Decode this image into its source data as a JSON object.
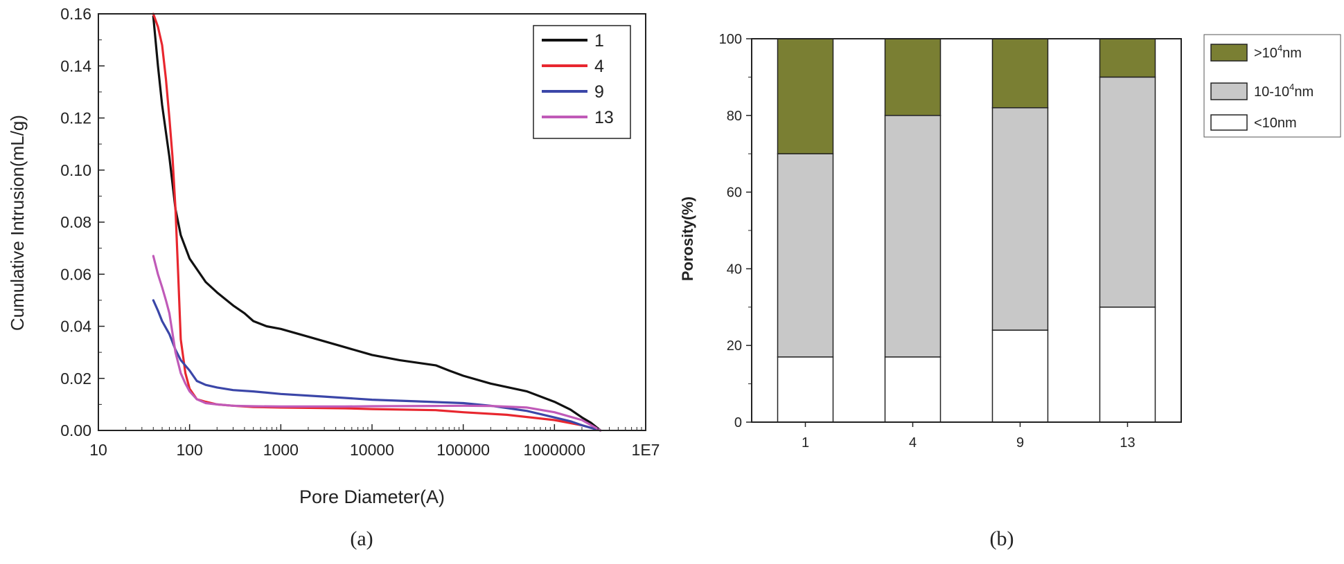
{
  "colors": {
    "line_1": "#111111",
    "line_4": "#e8272f",
    "line_9": "#3b46a8",
    "line_13": "#c05ab8",
    "seg_large": "#7a7f33",
    "seg_mid": "#c8c8c8",
    "seg_small": "#ffffff",
    "axis": "#222222"
  },
  "chart_data": [
    {
      "type": "line",
      "caption": "(a)",
      "xlabel": "Pore Diameter(A)",
      "ylabel": "Cumulative Intrusion(mL/g)",
      "xscale": "log",
      "xlim": [
        10,
        10000000
      ],
      "ylim": [
        0,
        0.16
      ],
      "x_tick_labels": [
        "10",
        "100",
        "1000",
        "10000",
        "100000",
        "1000000",
        "1E7"
      ],
      "y_tick_labels": [
        "0.00",
        "0.02",
        "0.04",
        "0.06",
        "0.08",
        "0.10",
        "0.12",
        "0.14",
        "0.16"
      ],
      "legend_position": "top-right",
      "series": [
        {
          "name": "1",
          "x": [
            40,
            45,
            50,
            60,
            70,
            80,
            100,
            150,
            200,
            300,
            400,
            500,
            700,
            1000,
            2000,
            5000,
            10000,
            20000,
            50000,
            70000,
            100000,
            200000,
            500000,
            1000000,
            1500000,
            2000000,
            2500000,
            3200000
          ],
          "y": [
            0.159,
            0.14,
            0.125,
            0.105,
            0.085,
            0.075,
            0.066,
            0.057,
            0.053,
            0.048,
            0.045,
            0.042,
            0.04,
            0.039,
            0.036,
            0.032,
            0.029,
            0.027,
            0.025,
            0.023,
            0.021,
            0.018,
            0.015,
            0.011,
            0.008,
            0.005,
            0.003,
            0.0
          ]
        },
        {
          "name": "4",
          "x": [
            40,
            45,
            50,
            55,
            60,
            65,
            70,
            75,
            80,
            90,
            100,
            120,
            150,
            200,
            300,
            500,
            1000,
            5000,
            10000,
            50000,
            100000,
            300000,
            1000000,
            2000000,
            3200000
          ],
          "y": [
            0.16,
            0.155,
            0.148,
            0.135,
            0.12,
            0.105,
            0.085,
            0.06,
            0.035,
            0.022,
            0.016,
            0.012,
            0.011,
            0.01,
            0.0095,
            0.009,
            0.0088,
            0.0085,
            0.0082,
            0.0078,
            0.007,
            0.006,
            0.004,
            0.002,
            0.0
          ]
        },
        {
          "name": "9",
          "x": [
            40,
            45,
            50,
            60,
            70,
            80,
            100,
            120,
            150,
            200,
            300,
            500,
            1000,
            3000,
            10000,
            30000,
            100000,
            200000,
            500000,
            1000000,
            1500000,
            2000000,
            2500000,
            3200000
          ],
          "y": [
            0.05,
            0.046,
            0.042,
            0.037,
            0.031,
            0.027,
            0.023,
            0.019,
            0.0175,
            0.0165,
            0.0155,
            0.015,
            0.014,
            0.013,
            0.0118,
            0.0112,
            0.0105,
            0.0095,
            0.0075,
            0.005,
            0.0035,
            0.002,
            0.001,
            0.0
          ]
        },
        {
          "name": "13",
          "x": [
            40,
            45,
            50,
            55,
            60,
            70,
            80,
            90,
            100,
            120,
            150,
            200,
            300,
            500,
            1000,
            5000,
            10000,
            50000,
            100000,
            200000,
            500000,
            1000000,
            2000000,
            3200000
          ],
          "y": [
            0.067,
            0.06,
            0.055,
            0.05,
            0.045,
            0.03,
            0.022,
            0.018,
            0.015,
            0.012,
            0.0105,
            0.01,
            0.0095,
            0.0093,
            0.0092,
            0.0092,
            0.0093,
            0.0094,
            0.0095,
            0.0094,
            0.0088,
            0.007,
            0.004,
            0.0
          ]
        }
      ]
    },
    {
      "type": "bar",
      "stacked": true,
      "caption": "(b)",
      "xlabel": "",
      "ylabel": "Porosity(%)",
      "ylim": [
        0,
        100
      ],
      "y_tick_labels": [
        "0",
        "20",
        "40",
        "60",
        "80",
        "100"
      ],
      "categories": [
        "1",
        "4",
        "9",
        "13"
      ],
      "legend_position": "top-right",
      "series": [
        {
          "name": "<10nm",
          "values": [
            17,
            17,
            24,
            30
          ]
        },
        {
          "name": "10-10⁴nm",
          "legend_base": "10-10",
          "legend_sup": "4",
          "legend_tail": "nm",
          "values": [
            53,
            63,
            58,
            60
          ]
        },
        {
          "name": ">10⁴nm",
          "legend_base": ">10",
          "legend_sup": "4",
          "legend_tail": "nm",
          "values": [
            30,
            20,
            18,
            10
          ]
        }
      ]
    }
  ]
}
